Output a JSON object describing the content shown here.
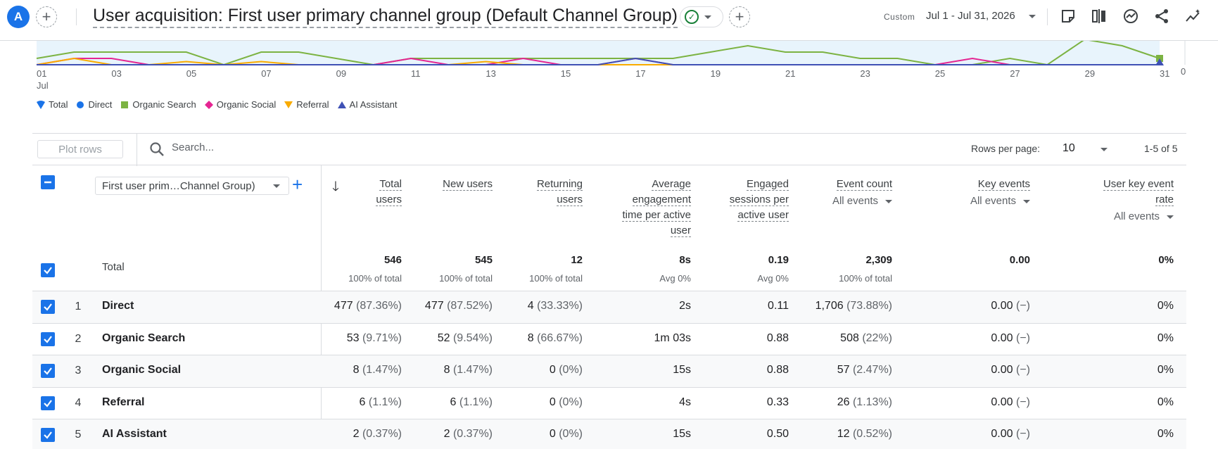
{
  "header": {
    "avatar_letter": "A",
    "title": "User acquisition: First user primary channel group (Default Channel Group)",
    "date_mode": "Custom",
    "date_range": "Jul 1 - Jul 31, 2026"
  },
  "chart": {
    "x_ticks": [
      "01",
      "03",
      "05",
      "07",
      "09",
      "11",
      "13",
      "15",
      "17",
      "19",
      "21",
      "23",
      "25",
      "27",
      "29",
      "31"
    ],
    "x_month": "Jul",
    "y_zero": "0",
    "legend": [
      {
        "label": "Total",
        "color": "#1a73e8",
        "shape": "drop"
      },
      {
        "label": "Direct",
        "color": "#1a73e8",
        "shape": "circle"
      },
      {
        "label": "Organic Search",
        "color": "#7cb342",
        "shape": "square"
      },
      {
        "label": "Organic Social",
        "color": "#e52592",
        "shape": "diamond"
      },
      {
        "label": "Referral",
        "color": "#f9ab00",
        "shape": "triangle-down"
      },
      {
        "label": "AI Assistant",
        "color": "#3f51b5",
        "shape": "triangle-up"
      }
    ]
  },
  "chart_data": {
    "type": "line",
    "x": [
      "01",
      "02",
      "03",
      "04",
      "05",
      "06",
      "07",
      "08",
      "09",
      "10",
      "11",
      "12",
      "13",
      "14",
      "15",
      "16",
      "17",
      "18",
      "19",
      "20",
      "21",
      "22",
      "23",
      "24",
      "25",
      "26",
      "27",
      "28",
      "29",
      "30",
      "31"
    ],
    "x_month": "Jul",
    "series": [
      {
        "name": "Organic Search",
        "color": "#7cb342",
        "values": [
          1,
          2,
          2,
          2,
          2,
          0,
          2,
          2,
          1,
          0,
          1,
          1,
          1,
          1,
          1,
          1,
          1,
          1,
          2,
          3,
          2,
          2,
          1,
          1,
          0,
          0,
          1,
          0,
          4,
          3,
          1
        ]
      },
      {
        "name": "Organic Social",
        "color": "#e52592",
        "values": [
          0,
          1,
          1,
          0,
          0,
          0,
          0,
          0,
          0,
          0,
          1,
          0,
          0,
          1,
          0,
          0,
          1,
          0,
          0,
          0,
          0,
          0,
          0,
          0,
          0,
          1,
          0,
          0,
          0,
          0,
          0
        ]
      },
      {
        "name": "Referral",
        "color": "#f9ab00",
        "values": [
          0,
          1,
          0,
          0,
          0.5,
          0,
          0.5,
          0,
          0,
          0,
          0,
          0,
          0.5,
          0,
          0,
          0,
          0,
          0,
          0,
          0,
          0,
          0,
          0,
          0,
          0,
          0,
          0,
          0,
          0,
          0,
          0
        ]
      },
      {
        "name": "AI Assistant",
        "color": "#3f51b5",
        "values": [
          0,
          0,
          0,
          0,
          0,
          0,
          0,
          0,
          0,
          0,
          0,
          0,
          0,
          0,
          0,
          0,
          1,
          0,
          0,
          0,
          0,
          0,
          0,
          0,
          0,
          0,
          0,
          0,
          0,
          0,
          0
        ]
      }
    ],
    "y_min": 0,
    "grid": false,
    "legend_position": "bottom-left"
  },
  "toolbar": {
    "plot_rows_label": "Plot rows",
    "search_placeholder": "Search...",
    "rows_per_page_label": "Rows per page:",
    "rows_per_page_value": "10",
    "pagination": "1-5 of 5"
  },
  "table": {
    "dimension_label": "First user prim…Channel Group)",
    "columns": [
      {
        "lines": [
          "Total",
          "users"
        ]
      },
      {
        "lines": [
          "New users"
        ]
      },
      {
        "lines": [
          "Returning",
          "users"
        ]
      },
      {
        "lines": [
          "Average",
          "engagement",
          "time per active",
          "user"
        ]
      },
      {
        "lines": [
          "Engaged",
          "sessions per",
          "active user"
        ]
      },
      {
        "lines": [
          "Event count"
        ],
        "sub": "All events"
      },
      {
        "lines": [
          "Key events"
        ],
        "sub": "All events"
      },
      {
        "lines": [
          "User key event",
          "rate"
        ],
        "sub": "All events"
      }
    ],
    "total": {
      "label": "Total",
      "values": [
        "546",
        "545",
        "12",
        "8s",
        "0.19",
        "2,309",
        "0.00",
        "0%"
      ],
      "subs": [
        "100% of total",
        "100% of total",
        "100% of total",
        "Avg 0%",
        "Avg 0%",
        "100% of total",
        "",
        ""
      ]
    },
    "rows": [
      {
        "num": "1",
        "name": "Direct",
        "cells": [
          [
            "477",
            " (87.36%)"
          ],
          [
            "477",
            " (87.52%)"
          ],
          [
            "4",
            " (33.33%)"
          ],
          [
            "2s",
            ""
          ],
          [
            "0.11",
            ""
          ],
          [
            "1,706",
            " (73.88%)"
          ],
          [
            "0.00",
            " (−)"
          ],
          [
            "0%",
            ""
          ]
        ]
      },
      {
        "num": "2",
        "name": "Organic Search",
        "cells": [
          [
            "53",
            " (9.71%)"
          ],
          [
            "52",
            " (9.54%)"
          ],
          [
            "8",
            " (66.67%)"
          ],
          [
            "1m 03s",
            ""
          ],
          [
            "0.88",
            ""
          ],
          [
            "508",
            " (22%)"
          ],
          [
            "0.00",
            " (−)"
          ],
          [
            "0%",
            ""
          ]
        ]
      },
      {
        "num": "3",
        "name": "Organic Social",
        "cells": [
          [
            "8",
            " (1.47%)"
          ],
          [
            "8",
            " (1.47%)"
          ],
          [
            "0",
            " (0%)"
          ],
          [
            "15s",
            ""
          ],
          [
            "0.88",
            ""
          ],
          [
            "57",
            " (2.47%)"
          ],
          [
            "0.00",
            " (−)"
          ],
          [
            "0%",
            ""
          ]
        ]
      },
      {
        "num": "4",
        "name": "Referral",
        "cells": [
          [
            "6",
            " (1.1%)"
          ],
          [
            "6",
            " (1.1%)"
          ],
          [
            "0",
            " (0%)"
          ],
          [
            "4s",
            ""
          ],
          [
            "0.33",
            ""
          ],
          [
            "26",
            " (1.13%)"
          ],
          [
            "0.00",
            " (−)"
          ],
          [
            "0%",
            ""
          ]
        ]
      },
      {
        "num": "5",
        "name": "AI Assistant",
        "cells": [
          [
            "2",
            " (0.37%)"
          ],
          [
            "2",
            " (0.37%)"
          ],
          [
            "0",
            " (0%)"
          ],
          [
            "15s",
            ""
          ],
          [
            "0.50",
            ""
          ],
          [
            "12",
            " (0.52%)"
          ],
          [
            "0.00",
            " (−)"
          ],
          [
            "0%",
            ""
          ]
        ]
      }
    ]
  }
}
